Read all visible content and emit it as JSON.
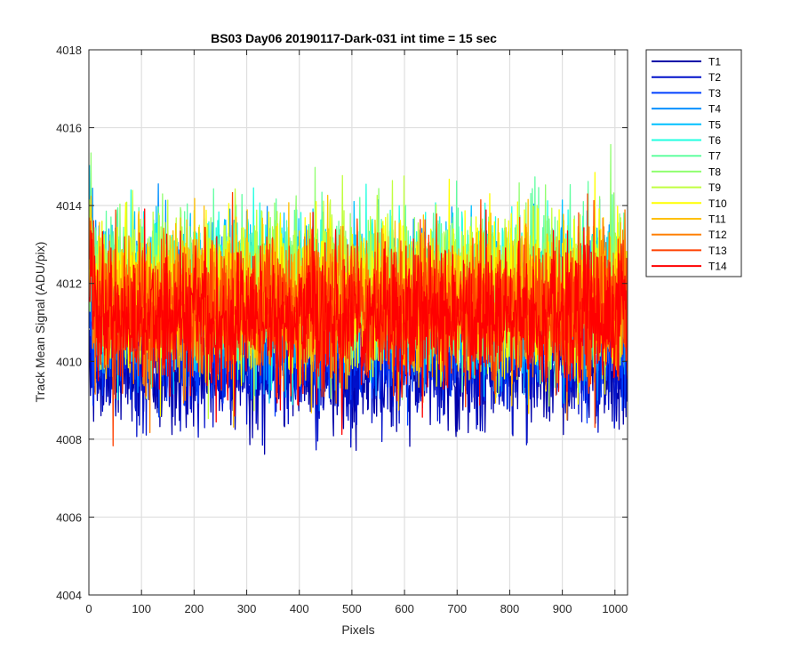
{
  "chart_data": {
    "type": "line",
    "title": "BS03 Day06 20190117-Dark-031 int time = 15 sec",
    "xlabel": "Pixels",
    "ylabel": "Track Mean Signal (ADU/pix)",
    "xlim": [
      0,
      1024
    ],
    "ylim": [
      4004,
      4018
    ],
    "xticks": [
      0,
      100,
      200,
      300,
      400,
      500,
      600,
      700,
      800,
      900,
      1000
    ],
    "yticks": [
      4004,
      4006,
      4008,
      4010,
      4012,
      4014,
      4016,
      4018
    ],
    "grid": true,
    "legend_position": "outside-top-right",
    "x": {
      "start": 1,
      "end": 1024,
      "step": 1
    },
    "series": [
      {
        "name": "T1",
        "color": "#0000a8",
        "mean": 4009.8,
        "noise": 0.75,
        "min": 4005.8,
        "max": 4011.5
      },
      {
        "name": "T2",
        "color": "#0010ca",
        "mean": 4010.0,
        "noise": 0.75,
        "min": 4006.6,
        "max": 4012.0
      },
      {
        "name": "T3",
        "color": "#0040ff",
        "mean": 4010.6,
        "noise": 0.8,
        "min": 4007.6,
        "max": 4013.0
      },
      {
        "name": "T4",
        "color": "#0090ff",
        "mean": 4011.4,
        "noise": 0.9,
        "min": 4008.5,
        "max": 4016.1
      },
      {
        "name": "T5",
        "color": "#00c0ff",
        "mean": 4011.6,
        "noise": 0.9,
        "min": 4008.6,
        "max": 4016.0
      },
      {
        "name": "T6",
        "color": "#20ffe0",
        "mean": 4011.8,
        "noise": 0.95,
        "min": 4008.4,
        "max": 4016.0
      },
      {
        "name": "T7",
        "color": "#60ffa0",
        "mean": 4011.9,
        "noise": 0.95,
        "min": 4008.5,
        "max": 4016.4
      },
      {
        "name": "T8",
        "color": "#90ff70",
        "mean": 4011.9,
        "noise": 0.95,
        "min": 4008.4,
        "max": 4016.5
      },
      {
        "name": "T9",
        "color": "#c0ff40",
        "mean": 4011.8,
        "noise": 0.95,
        "min": 4008.5,
        "max": 4016.2
      },
      {
        "name": "T10",
        "color": "#ffff00",
        "mean": 4011.7,
        "noise": 0.95,
        "min": 4008.4,
        "max": 4017.0
      },
      {
        "name": "T11",
        "color": "#ffc000",
        "mean": 4011.5,
        "noise": 0.95,
        "min": 4008.1,
        "max": 4016.2
      },
      {
        "name": "T12",
        "color": "#ff8000",
        "mean": 4011.4,
        "noise": 0.9,
        "min": 4007.9,
        "max": 4016.5
      },
      {
        "name": "T13",
        "color": "#ff4000",
        "mean": 4011.3,
        "noise": 0.9,
        "min": 4007.8,
        "max": 4015.2
      },
      {
        "name": "T14",
        "color": "#ff0000",
        "mean": 4011.1,
        "noise": 0.9,
        "min": 4007.8,
        "max": 4014.5
      }
    ]
  }
}
